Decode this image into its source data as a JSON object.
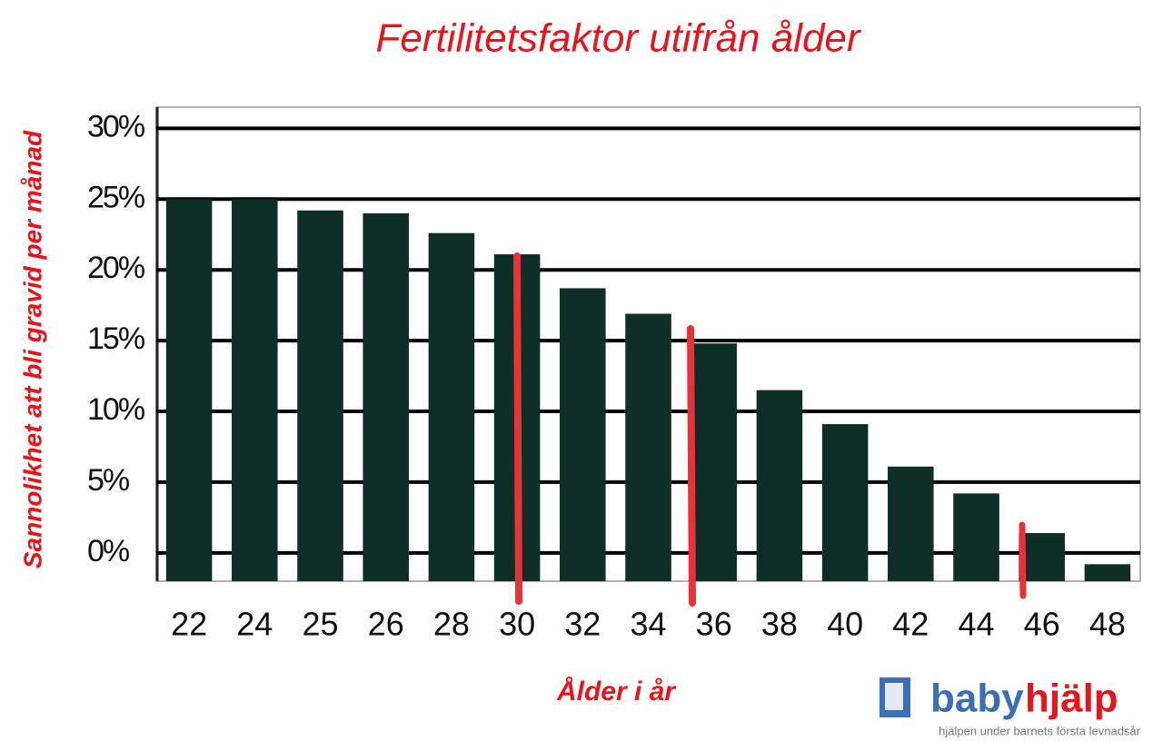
{
  "chart_data": {
    "type": "bar",
    "title": "Fertilitetsfaktor utifrån ålder",
    "y_label": "Sannolikhet att bli gravid per månad",
    "x_label": "Ålder i år",
    "categories": [
      "22",
      "24",
      "25",
      "26",
      "28",
      "30",
      "32",
      "34",
      "36",
      "38",
      "40",
      "42",
      "44",
      "46",
      "48"
    ],
    "values": [
      25,
      25,
      24.2,
      24,
      22.6,
      21.1,
      18.7,
      16.9,
      14.8,
      11.5,
      9.1,
      6.1,
      4.2,
      1.4,
      -0.8
    ],
    "color": "#0f2e26",
    "ylim": [
      -2,
      31.5
    ],
    "yticks": [
      {
        "value": 0,
        "label": "0%"
      },
      {
        "value": 5,
        "label": "5%"
      },
      {
        "value": 10,
        "label": "10%"
      },
      {
        "value": 15,
        "label": "15%"
      },
      {
        "value": 20,
        "label": "20%"
      },
      {
        "value": 25,
        "label": "25%"
      },
      {
        "value": 30,
        "label": "30%"
      }
    ],
    "grid": true
  },
  "logo": {
    "brand_1": "baby",
    "brand_2": "hjälp",
    "tagline": "hjälpen under barnets första levnadsår"
  }
}
